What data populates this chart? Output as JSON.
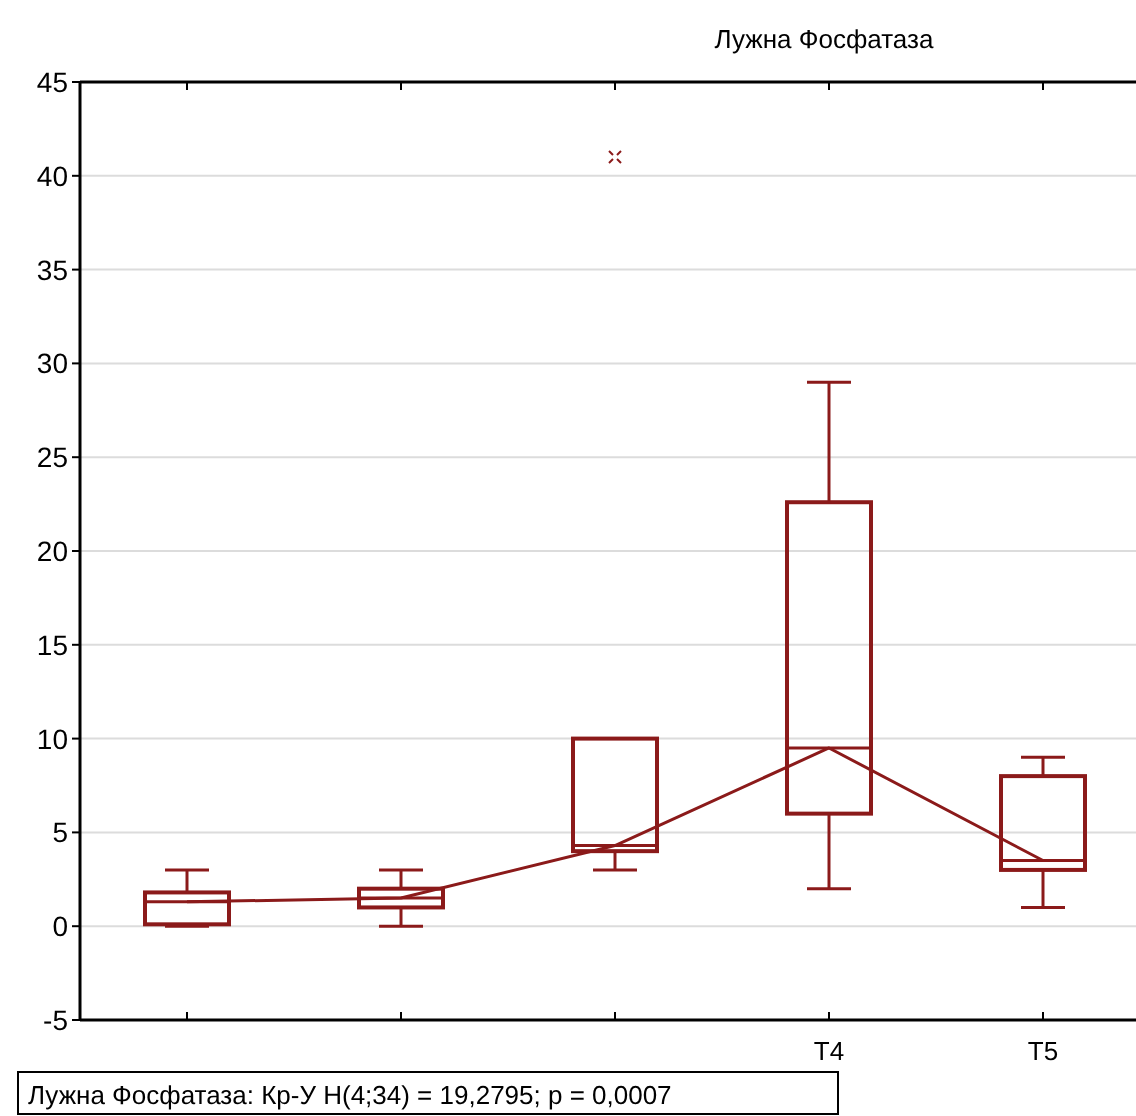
{
  "chart_data": {
    "type": "box",
    "title": "Лужна Фосфатаза",
    "categories": [
      null,
      null,
      null,
      "T4",
      "T5"
    ],
    "series": [
      {
        "type": "box",
        "color": "#8b1a1a",
        "boxes": [
          {
            "low": 0,
            "q1": 0.1,
            "median": 1.3,
            "q3": 1.8,
            "high": 3
          },
          {
            "low": 0,
            "q1": 1,
            "median": 1.5,
            "q3": 2,
            "high": 3
          },
          {
            "low": 3,
            "q1": 4,
            "median": 4.3,
            "q3": 10,
            "high": 10,
            "outliers": [
              41
            ]
          },
          {
            "low": 2,
            "q1": 6,
            "median": 9.5,
            "q3": 22.6,
            "high": 29
          },
          {
            "low": 1,
            "q1": 3,
            "median": 3.5,
            "q3": 8,
            "high": 9
          }
        ]
      },
      {
        "type": "line",
        "color": "#8b1a1a",
        "values": [
          1.3,
          1.5,
          4.3,
          9.5,
          3.5
        ]
      }
    ],
    "ylim": [
      -5,
      45
    ],
    "yticks": [
      -5,
      0,
      5,
      10,
      15,
      20,
      25,
      30,
      35,
      40,
      45
    ],
    "grid": "y",
    "annotations": [
      "Лужна Фосфатаза:  Кр-У H(4;34) = 19,2795; p = 0,0007"
    ]
  }
}
